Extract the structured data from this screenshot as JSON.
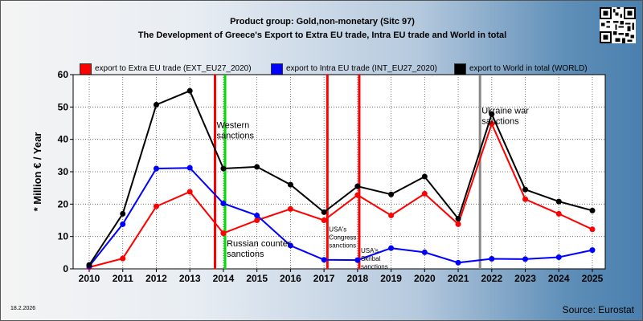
{
  "header": {
    "line1": "Product group: Gold,non-monetary (Sitc 97)",
    "line2": "The Development of Greece's Export to Extra EU trade, Intra EU trade and World in total"
  },
  "footer": {
    "date": "18.2.2026",
    "source": "Source: Eurostat"
  },
  "qr_icon": "qr-code-icon",
  "chart_data": {
    "type": "line",
    "title": "The Development of Greece's Export to Extra EU trade, Intra EU trade and World in total",
    "subtitle": "Product group: Gold,non-monetary (Sitc 97)",
    "xlabel": "",
    "ylabel": "* Million € / Year",
    "ylim": [
      0,
      60
    ],
    "yticks": [
      0,
      10,
      20,
      30,
      40,
      50,
      60
    ],
    "grid": true,
    "legend_position": "top",
    "x": [
      2010,
      2011,
      2012,
      2013,
      2014,
      2015,
      2016,
      2017,
      2018,
      2019,
      2020,
      2021,
      2022,
      2023,
      2024,
      2025
    ],
    "series": [
      {
        "name": "export to Extra EU trade (EXT_EU27_2020)",
        "color": "#ff0000",
        "values": [
          0.5,
          3.2,
          19.3,
          23.8,
          11,
          15,
          18.5,
          15,
          22.8,
          16.5,
          23.2,
          13.8,
          44.8,
          21.5,
          17,
          12.2
        ]
      },
      {
        "name": "export to Intra EU trade (INT_EU27_2020)",
        "color": "#0000ff",
        "values": [
          0.8,
          13.8,
          31,
          31.2,
          20.2,
          16.5,
          7.2,
          2.8,
          2.7,
          6.4,
          5.1,
          1.9,
          3.1,
          3,
          3.6,
          5.8
        ]
      },
      {
        "name": "export to World in total (WORLD)",
        "color": "#000000",
        "values": [
          1.2,
          17,
          50.7,
          55,
          31,
          31.5,
          26,
          17.5,
          25.5,
          23,
          28.5,
          15.5,
          47.8,
          24.5,
          20.8,
          18
        ]
      }
    ],
    "events": [
      {
        "x": 2013.75,
        "color": "#ff0000",
        "label": "Western sanctions",
        "label_y": 43.5
      },
      {
        "x": 2014.05,
        "color": "#00dd00",
        "label": "Russian counter sanctions",
        "label_y": 7
      },
      {
        "x": 2017.1,
        "color": "#ff0000",
        "label": "USA's Congress sanctions",
        "label_y": 11.5
      },
      {
        "x": 2018.05,
        "color": "#ff0000",
        "label": "USA's Skribal sanctions",
        "label_y": 5
      },
      {
        "x": 2021.65,
        "color": "#888888",
        "label": "Ukraine war sanctions",
        "label_y": 48
      }
    ]
  }
}
